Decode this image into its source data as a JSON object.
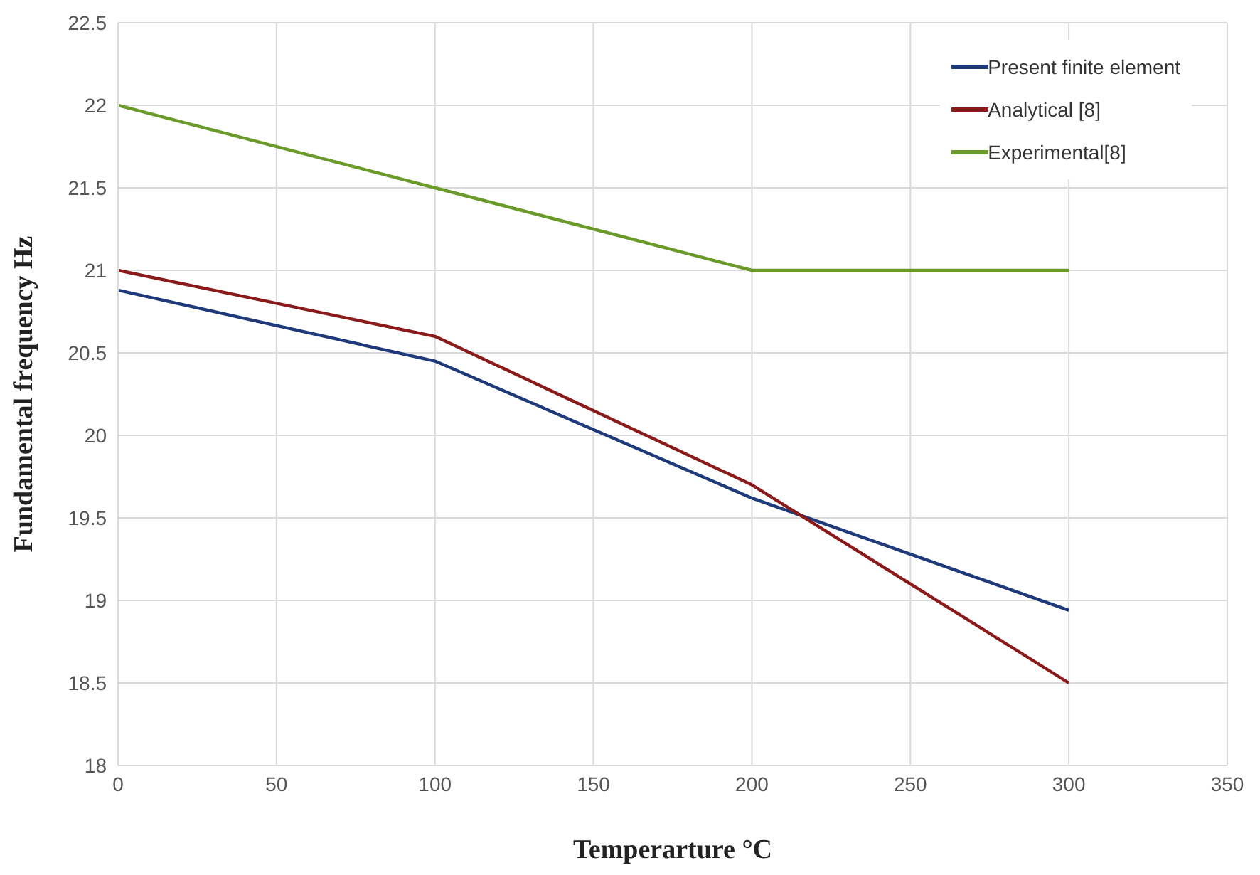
{
  "chart_data": {
    "type": "line",
    "xlabel": "Temperarture °C",
    "ylabel": "Fundamental frequency  Hz",
    "x": [
      0,
      100,
      200,
      300
    ],
    "series": [
      {
        "name": "Present finite element",
        "color": "#1f3a7a",
        "values": [
          20.88,
          20.45,
          19.62,
          18.94
        ]
      },
      {
        "name": "Analytical [8]",
        "color": "#8b1a1a",
        "values": [
          21.0,
          20.6,
          19.7,
          18.5
        ]
      },
      {
        "name": "Experimental[8]",
        "color": "#6a9a2a",
        "values": [
          22.0,
          21.5,
          21.0,
          21.0
        ]
      }
    ],
    "xlim": [
      0,
      350
    ],
    "xticks": [
      0,
      50,
      100,
      150,
      200,
      250,
      300,
      350
    ],
    "ylim": [
      18,
      22.5
    ],
    "yticks": [
      18,
      18.5,
      19,
      19.5,
      20,
      20.5,
      21,
      21.5,
      22,
      22.5
    ],
    "grid": true,
    "legend": "top right",
    "marker": "none",
    "line_style": "solid"
  }
}
